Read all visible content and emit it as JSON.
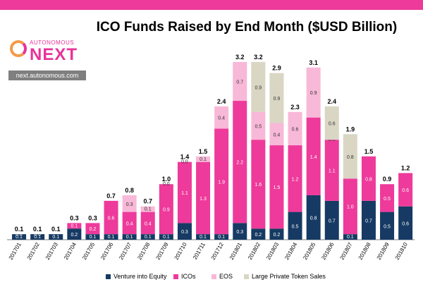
{
  "brand": {
    "logo_top": "AUTONOMOUS",
    "logo_main": "NEXT",
    "url": "next.autonomous.com"
  },
  "colors": {
    "header": "#ee3a9b",
    "venture": "#163a63",
    "icos": "#ee3a9b",
    "eos": "#f8b8d8",
    "large_private": "#d9d6c4"
  },
  "chart_data": {
    "type": "bar",
    "stacked": true,
    "title": "ICO Funds Raised by End Month ($USD Billion)",
    "xlabel": "",
    "ylabel": "",
    "ylim": [
      0,
      3.3
    ],
    "grid": false,
    "legend_position": "bottom",
    "categories": [
      "201701",
      "201702",
      "201703",
      "201704",
      "201705",
      "201706",
      "201707",
      "201708",
      "201709",
      "201710",
      "201711",
      "201712",
      "201801",
      "201802",
      "201803",
      "201804",
      "201805",
      "201806",
      "201807",
      "201808",
      "201809",
      "201810"
    ],
    "series": [
      {
        "name": "Venture into Equity",
        "color": "#163a63",
        "values": [
          0.1,
          0.1,
          0.1,
          0.2,
          0.1,
          0.1,
          0.1,
          0.1,
          0.1,
          0.3,
          0.1,
          0.1,
          0.3,
          0.2,
          0.2,
          0.5,
          0.8,
          0.7,
          0.1,
          0.7,
          0.5,
          0.6
        ]
      },
      {
        "name": "ICOs",
        "color": "#ee3a9b",
        "values": [
          0.0,
          0.0,
          0.0,
          0.1,
          0.2,
          0.6,
          0.4,
          0.4,
          0.9,
          1.1,
          1.3,
          1.9,
          2.2,
          1.6,
          1.5,
          1.2,
          1.4,
          1.1,
          1.0,
          0.8,
          0.5,
          0.6
        ]
      },
      {
        "name": "EOS",
        "color": "#f8b8d8",
        "values": [
          0.0,
          0.0,
          0.0,
          0.0,
          0.0,
          0.0,
          0.3,
          0.1,
          0.0,
          0.0,
          0.1,
          0.4,
          0.7,
          0.5,
          0.4,
          0.6,
          0.9,
          0.0,
          0.0,
          0.0,
          0.0,
          0.0
        ]
      },
      {
        "name": "Large Private Token Sales",
        "color": "#d9d6c4",
        "values": [
          0.0,
          0.0,
          0.0,
          0.0,
          0.0,
          0.0,
          0.0,
          0.0,
          0.0,
          0.0,
          0.0,
          0.0,
          0.0,
          0.9,
          0.9,
          0.0,
          0.0,
          0.6,
          0.8,
          0.0,
          0.0,
          0.0
        ]
      }
    ],
    "segment_labels": [
      [
        "0.1",
        "0.0",
        "",
        ""
      ],
      [
        "0.1",
        "0.0",
        "",
        ""
      ],
      [
        "0.1",
        "",
        "",
        ""
      ],
      [
        "0.2",
        "0.1",
        "",
        ""
      ],
      [
        "0.1",
        "0.2",
        "",
        ""
      ],
      [
        "0.1",
        "0.6",
        "",
        ""
      ],
      [
        "0.1",
        "0.4",
        "0.3",
        ""
      ],
      [
        "0.1",
        "0.4",
        "0.1",
        ""
      ],
      [
        "0.1",
        "0.9",
        "0.0",
        ""
      ],
      [
        "0.3",
        "1.1",
        "0.0",
        ""
      ],
      [
        "0.1",
        "1.3",
        "0.1",
        ""
      ],
      [
        "0.1",
        "1.9",
        "0.4",
        ""
      ],
      [
        "0.3",
        "2.2",
        "0.7",
        ""
      ],
      [
        "0.2",
        "1.6",
        "0.5",
        "0.9"
      ],
      [
        "0.2",
        "1.5",
        "0.4",
        "0.9"
      ],
      [
        "0.5",
        "1.2",
        "0.6",
        ""
      ],
      [
        "0.8",
        "1.4",
        "0.9",
        ""
      ],
      [
        "0.7",
        "1.1",
        "0.0",
        "0.6"
      ],
      [
        "0.1",
        "1.0",
        "",
        "0.8"
      ],
      [
        "0.7",
        "0.8",
        "",
        ""
      ],
      [
        "0.5",
        "0.5",
        "",
        ""
      ],
      [
        "0.6",
        "0.6",
        "",
        ""
      ]
    ],
    "totals": [
      "0.1",
      "0.1",
      "0.1",
      "0.3",
      "0.3",
      "0.7",
      "0.8",
      "0.7",
      "1.0",
      "1.4",
      "1.5",
      "2.4",
      "3.2",
      "3.2",
      "2.9",
      "2.3",
      "3.1",
      "2.4",
      "1.9",
      "1.5",
      "0.9",
      "1.2"
    ]
  }
}
